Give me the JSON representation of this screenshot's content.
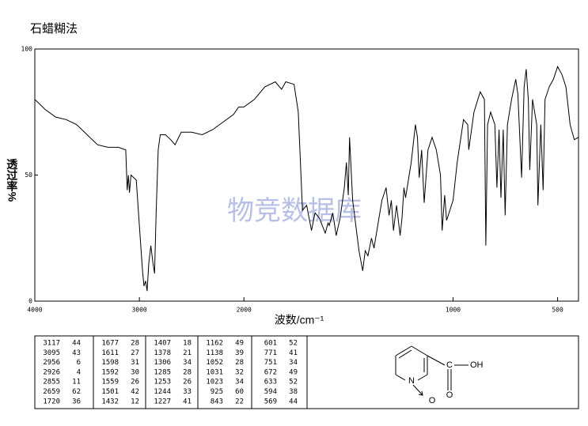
{
  "chart_data": {
    "type": "line",
    "title": "石蜡糊法",
    "watermark": "物竞数据库",
    "x_label": "波数/cm⁻¹",
    "y_label": "透过率%",
    "xlim": [
      4000,
      400
    ],
    "x_scale_change": 2000,
    "ylim": [
      0,
      100
    ],
    "xticks": [
      4000,
      3000,
      2000,
      1000,
      500
    ],
    "yticks": [
      0,
      50,
      100
    ],
    "color": "#000000",
    "x": [
      4000,
      3900,
      3800,
      3700,
      3600,
      3500,
      3400,
      3300,
      3200,
      3130,
      3117,
      3105,
      3095,
      3080,
      3030,
      3000,
      2970,
      2956,
      2940,
      2926,
      2910,
      2890,
      2870,
      2855,
      2840,
      2820,
      2800,
      2750,
      2700,
      2659,
      2600,
      2500,
      2400,
      2300,
      2200,
      2100,
      2050,
      2000,
      1950,
      1900,
      1850,
      1820,
      1800,
      1760,
      1740,
      1720,
      1700,
      1677,
      1660,
      1640,
      1611,
      1598,
      1592,
      1575,
      1559,
      1540,
      1520,
      1510,
      1501,
      1495,
      1480,
      1450,
      1432,
      1420,
      1407,
      1390,
      1378,
      1360,
      1340,
      1320,
      1306,
      1295,
      1285,
      1270,
      1253,
      1244,
      1235,
      1227,
      1200,
      1180,
      1170,
      1162,
      1150,
      1138,
      1120,
      1100,
      1080,
      1060,
      1052,
      1040,
      1031,
      1023,
      1000,
      980,
      950,
      930,
      925,
      900,
      870,
      850,
      843,
      835,
      820,
      800,
      790,
      780,
      771,
      760,
      751,
      740,
      720,
      700,
      690,
      672,
      660,
      650,
      640,
      633,
      620,
      600,
      594,
      580,
      569,
      560,
      540,
      520,
      500,
      480,
      460,
      440,
      420,
      400
    ],
    "values": [
      80,
      76,
      73,
      72,
      70,
      66,
      62,
      61,
      61,
      60,
      44,
      50,
      43,
      50,
      48,
      30,
      12,
      6,
      8,
      4,
      15,
      22,
      15,
      11,
      35,
      60,
      66,
      66,
      64,
      62,
      67,
      67,
      66,
      68,
      71,
      74,
      77,
      77,
      80,
      85,
      87,
      84,
      87,
      86,
      75,
      36,
      38,
      28,
      35,
      33,
      27,
      31,
      30,
      35,
      26,
      33,
      45,
      55,
      42,
      65,
      40,
      20,
      12,
      20,
      18,
      25,
      21,
      30,
      40,
      45,
      34,
      40,
      28,
      38,
      26,
      33,
      45,
      41,
      55,
      70,
      65,
      49,
      60,
      39,
      60,
      65,
      60,
      50,
      28,
      42,
      32,
      34,
      40,
      55,
      72,
      70,
      60,
      75,
      83,
      80,
      22,
      70,
      75,
      70,
      45,
      68,
      41,
      68,
      34,
      70,
      80,
      88,
      82,
      49,
      85,
      92,
      80,
      52,
      80,
      70,
      38,
      70,
      44,
      80,
      85,
      88,
      93,
      90,
      85,
      70,
      64,
      65
    ]
  },
  "peak_table": [
    [
      [
        3117,
        44
      ],
      [
        3095,
        43
      ],
      [
        2956,
        6
      ],
      [
        2926,
        4
      ],
      [
        2855,
        11
      ],
      [
        2659,
        62
      ],
      [
        1720,
        36
      ]
    ],
    [
      [
        1677,
        28
      ],
      [
        1611,
        27
      ],
      [
        1598,
        31
      ],
      [
        1592,
        30
      ],
      [
        1559,
        26
      ],
      [
        1501,
        42
      ],
      [
        1432,
        12
      ]
    ],
    [
      [
        1407,
        18
      ],
      [
        1378,
        21
      ],
      [
        1306,
        34
      ],
      [
        1285,
        28
      ],
      [
        1253,
        26
      ],
      [
        1244,
        33
      ],
      [
        1227,
        41
      ]
    ],
    [
      [
        1162,
        49
      ],
      [
        1138,
        39
      ],
      [
        1052,
        28
      ],
      [
        1031,
        32
      ],
      [
        1023,
        34
      ],
      [
        925,
        60
      ],
      [
        843,
        22
      ]
    ],
    [
      [
        601,
        52
      ],
      [
        771,
        41
      ],
      [
        751,
        34
      ],
      [
        672,
        49
      ],
      [
        633,
        52
      ],
      [
        594,
        38
      ],
      [
        569,
        44
      ]
    ]
  ],
  "structure": {
    "carbon": "C",
    "hydroxyl": "OH",
    "carbonyl_oxygen": "O",
    "nitrogen": "N",
    "oxide_oxygen": "O"
  }
}
